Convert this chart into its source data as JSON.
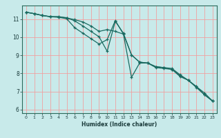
{
  "title": "",
  "xlabel": "Humidex (Indice chaleur)",
  "background_color": "#c8eaea",
  "grid_color": "#f0a0a0",
  "line_color": "#1a6a60",
  "xlim": [
    -0.5,
    23.5
  ],
  "ylim": [
    5.8,
    11.75
  ],
  "xticks": [
    0,
    1,
    2,
    3,
    4,
    5,
    6,
    7,
    8,
    9,
    10,
    11,
    12,
    13,
    14,
    15,
    16,
    17,
    18,
    19,
    20,
    21,
    22,
    23
  ],
  "yticks": [
    6,
    7,
    8,
    9,
    10,
    11
  ],
  "line1_x": [
    0,
    1,
    2,
    3,
    4,
    5,
    6,
    7,
    8,
    9,
    10,
    11,
    12,
    13,
    14,
    15,
    16,
    17,
    18,
    19,
    20,
    21,
    22,
    23
  ],
  "line1_y": [
    11.38,
    11.3,
    11.2,
    11.14,
    11.12,
    11.08,
    10.9,
    10.62,
    10.32,
    10.02,
    9.22,
    10.88,
    10.22,
    9.02,
    8.62,
    8.57,
    8.37,
    8.32,
    8.27,
    7.92,
    7.62,
    7.27,
    6.92,
    6.47
  ],
  "line2_x": [
    0,
    1,
    2,
    3,
    4,
    5,
    6,
    7,
    8,
    9,
    10,
    11,
    12,
    13,
    14,
    15,
    16,
    17,
    18,
    19,
    20,
    21,
    22,
    23
  ],
  "line2_y": [
    11.38,
    11.3,
    11.2,
    11.13,
    11.14,
    11.06,
    10.97,
    10.84,
    10.62,
    10.32,
    10.42,
    10.32,
    10.17,
    7.78,
    8.57,
    8.57,
    8.37,
    8.32,
    8.22,
    7.82,
    7.62,
    7.27,
    6.82,
    6.47
  ],
  "line3_x": [
    0,
    1,
    2,
    3,
    4,
    5,
    6,
    7,
    8,
    9,
    10,
    11,
    12,
    13,
    14,
    15,
    16,
    17,
    18,
    19,
    20,
    21,
    22,
    23
  ],
  "line3_y": [
    11.38,
    11.3,
    11.2,
    11.13,
    11.1,
    11.02,
    10.52,
    10.22,
    9.92,
    9.62,
    9.87,
    10.92,
    10.17,
    9.02,
    8.62,
    8.57,
    8.32,
    8.27,
    8.22,
    7.87,
    7.62,
    7.22,
    6.82,
    6.47
  ]
}
